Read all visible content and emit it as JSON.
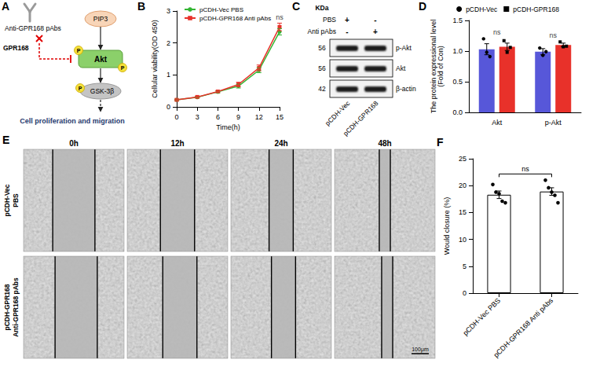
{
  "diagram": {
    "letter": "A",
    "antibody": "Anti-GPR168 pAbs",
    "receptor": "GPR168",
    "nodes": [
      "PIP3",
      "Akt",
      "GSK-3β"
    ],
    "phospho": "P",
    "outcome": "Cell proliferation and migration"
  },
  "chart_data": [
    {
      "letter": "B",
      "type": "line",
      "x_label": "Time(h)",
      "y_label": "Cellular viability(OD 450)",
      "x": [
        0,
        3,
        6,
        9,
        12,
        15
      ],
      "xlim": [
        0,
        15
      ],
      "xticks": [
        0,
        3,
        6,
        9,
        12,
        15
      ],
      "ylim": [
        0,
        3
      ],
      "yticks": [
        0,
        1,
        2,
        3
      ],
      "grid": false,
      "legend": "upper left",
      "series": [
        {
          "name": "pCDH-Vec PBS",
          "color": "#33b533",
          "marker": "circle",
          "values": [
            0.22,
            0.3,
            0.47,
            0.65,
            1.15,
            2.35
          ],
          "errors": [
            0.02,
            0.02,
            0.03,
            0.06,
            0.08,
            0.1
          ]
        },
        {
          "name": "pCDH-GPR168 Anti pAbs",
          "color": "#e8312a",
          "marker": "square",
          "values": [
            0.22,
            0.31,
            0.48,
            0.7,
            1.22,
            2.5
          ],
          "errors": [
            0.02,
            0.02,
            0.03,
            0.07,
            0.09,
            0.12
          ]
        }
      ],
      "significance": "ns"
    },
    {
      "letter": "D",
      "type": "bar",
      "categories": [
        "Akt",
        "p-Akt"
      ],
      "y_label": "The protein expressional level (Fold of Con)",
      "ylim": [
        0,
        1.5
      ],
      "yticks": [
        {
          "value": 0,
          "label": "0.0"
        },
        {
          "value": 0.5,
          "label": "0.5"
        },
        {
          "value": 1,
          "label": "1.0"
        },
        {
          "value": 1.5,
          "label": "1.5"
        }
      ],
      "grid": false,
      "legend": "top",
      "series": [
        {
          "name": "pCDH-Vec",
          "color": "#5757d9",
          "marker": "circle",
          "values": [
            1.03,
            0.99
          ],
          "errors": [
            0.09,
            0.05
          ],
          "points": [
            [
              1.2,
              0.98,
              0.91
            ],
            [
              1.05,
              0.93,
              0.99
            ]
          ]
        },
        {
          "name": "pCDH-GPR168",
          "color": "#e8312a",
          "marker": "square",
          "values": [
            1.07,
            1.1
          ],
          "errors": [
            0.06,
            0.03
          ],
          "points": [
            [
              1.17,
              0.98,
              1.06
            ],
            [
              1.15,
              1.07,
              1.08
            ]
          ]
        }
      ],
      "significance": [
        "ns",
        "ns"
      ]
    },
    {
      "letter": "F",
      "type": "bar",
      "categories": [
        "pCDH-Vec PBS",
        "pCDH-GPR168 Anti pAbs"
      ],
      "y_label": "Would closure (%)",
      "ylim": [
        0,
        25
      ],
      "yticks": [
        0,
        5,
        10,
        15,
        20,
        25
      ],
      "grid": false,
      "color": "#ffffff",
      "values": [
        18.3,
        18.9
      ],
      "errors": [
        0.7,
        0.7
      ],
      "points": [
        [
          20.2,
          18.8,
          18.5,
          17.1,
          16.8
        ],
        [
          21,
          19.6,
          18.8,
          18.2,
          16.8
        ]
      ],
      "significance": "ns"
    }
  ],
  "blot": {
    "letter": "C",
    "unit": "KDa",
    "treatments": [
      {
        "name": "PBS",
        "lanes": [
          "+",
          "-"
        ]
      },
      {
        "name": "Anti pAbs",
        "lanes": [
          "-",
          "+"
        ]
      }
    ],
    "bands": [
      {
        "name": "p-Akt",
        "kda": 56
      },
      {
        "name": "Akt",
        "kda": 56
      },
      {
        "name": "β-actin",
        "kda": 42
      }
    ],
    "lanes": [
      "pCDH-Vec",
      "pCDH-GPR168"
    ]
  },
  "wound": {
    "letter": "E",
    "times": [
      "0h",
      "12h",
      "24h",
      "48h"
    ],
    "rows": [
      [
        "pCDH-Vec",
        "PBS"
      ],
      [
        "pCDH-GPR168",
        "Anti-GPR168 pAbs"
      ]
    ],
    "scale_bar": "100μm"
  }
}
